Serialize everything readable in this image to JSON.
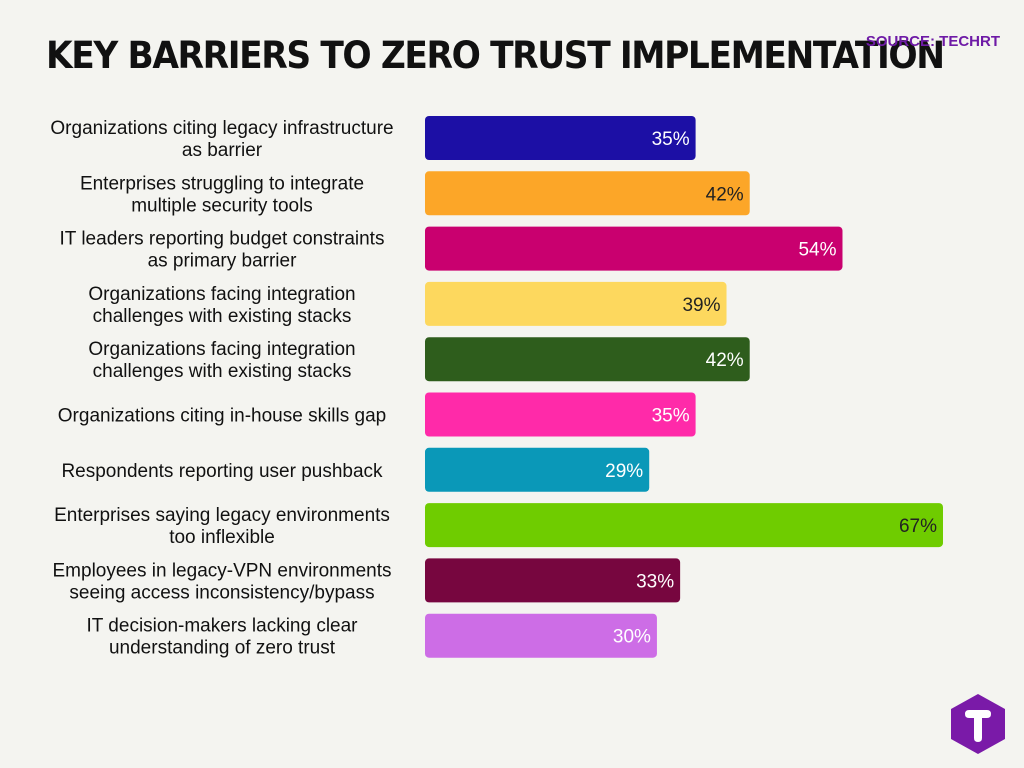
{
  "header": {
    "title": "KEY BARRIERS TO ZERO TRUST IMPLEMENTATION",
    "source": "SOURCE: TECHRT"
  },
  "logo": {
    "icon": "techrt-t-logo-icon",
    "color": "#7a1aa8"
  },
  "chart_data": {
    "type": "bar",
    "orientation": "horizontal",
    "value_suffix": "%",
    "xlim": [
      0,
      67
    ],
    "grid": false,
    "categories": [
      [
        "Organizations citing legacy infrastructure",
        "as barrier"
      ],
      [
        "Enterprises struggling to integrate",
        "multiple security tools"
      ],
      [
        "IT leaders reporting budget constraints",
        "as primary barrier"
      ],
      [
        "Organizations facing integration",
        "challenges with existing stacks"
      ],
      [
        "Organizations facing integration",
        "challenges with existing stacks"
      ],
      [
        "Organizations citing in-house skills gap"
      ],
      [
        "Respondents reporting user pushback"
      ],
      [
        "Enterprises saying legacy environments",
        "too inflexible"
      ],
      [
        "Employees in legacy-VPN environments",
        "seeing access inconsistency/bypass"
      ],
      [
        "IT decision-makers lacking clear",
        "understanding of zero trust"
      ]
    ],
    "values": [
      35,
      42,
      54,
      39,
      42,
      35,
      29,
      67,
      33,
      30
    ],
    "labels": [
      "35%",
      "42%",
      "54%",
      "39%",
      "42%",
      "35%",
      "29%",
      "67%",
      "33%",
      "30%"
    ],
    "colors": [
      "#1c0fa5",
      "#fca628",
      "#c9006f",
      "#fdd85e",
      "#2e5d1c",
      "#ff2aa9",
      "#0a98b8",
      "#6fcc00",
      "#77063f",
      "#cd6de6"
    ],
    "label_colors": [
      "#ffffff",
      "#222222",
      "#ffffff",
      "#222222",
      "#ffffff",
      "#ffffff",
      "#ffffff",
      "#222222",
      "#ffffff",
      "#ffffff"
    ]
  }
}
